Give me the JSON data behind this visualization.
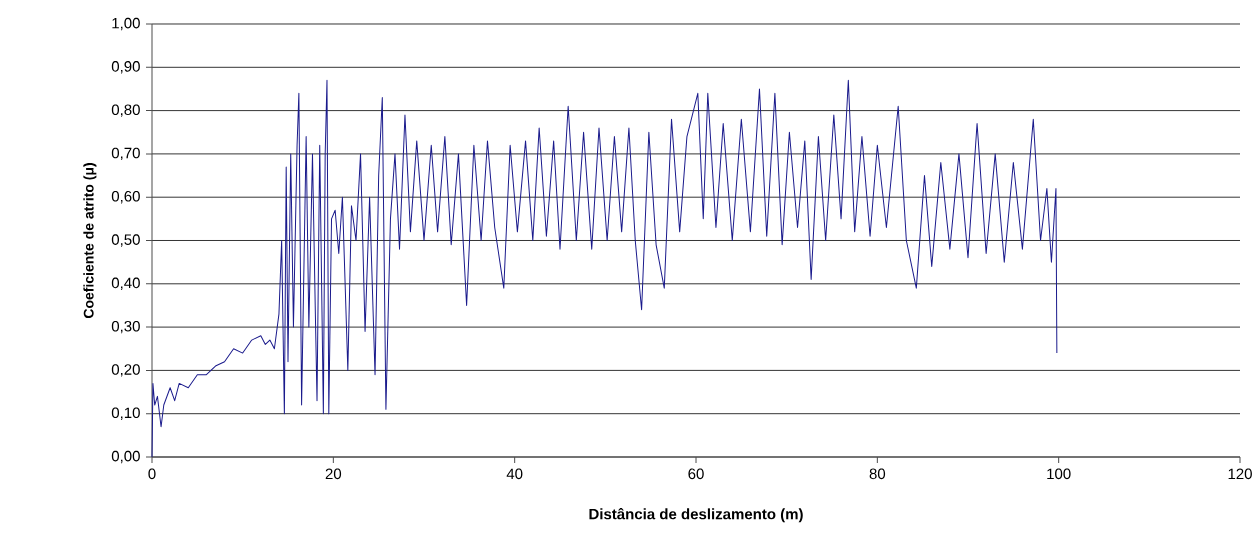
{
  "chart_data": {
    "type": "line",
    "xlabel": "Distância de deslizamento (m)",
    "ylabel": "Coeficiente de atrito (μ)",
    "xlim": [
      0,
      120
    ],
    "ylim": [
      0,
      1
    ],
    "xticks": [
      0,
      20,
      40,
      60,
      80,
      100,
      120
    ],
    "yticks": [
      {
        "value": 0,
        "label": "0,00"
      },
      {
        "value": 0.1,
        "label": "0,10"
      },
      {
        "value": 0.2,
        "label": "0,20"
      },
      {
        "value": 0.3,
        "label": "0,30"
      },
      {
        "value": 0.4,
        "label": "0,40"
      },
      {
        "value": 0.5,
        "label": "0,50"
      },
      {
        "value": 0.6,
        "label": "0,60"
      },
      {
        "value": 0.7,
        "label": "0,70"
      },
      {
        "value": 0.8,
        "label": "0,80"
      },
      {
        "value": 0.9,
        "label": "0,90"
      },
      {
        "value": 1,
        "label": "1,00"
      }
    ],
    "grid": "y",
    "marker": "none",
    "color": "#1a1a8c",
    "x": [
      0,
      0.1,
      0.3,
      0.6,
      1.0,
      1.3,
      2.0,
      2.5,
      3.0,
      4.0,
      5.0,
      6.0,
      7.0,
      8.0,
      9.0,
      10.0,
      11.0,
      12.0,
      12.5,
      13.0,
      13.5,
      14.0,
      14.3,
      14.6,
      14.8,
      15.0,
      15.3,
      15.6,
      16.0,
      16.2,
      16.5,
      17.0,
      17.3,
      17.7,
      18.0,
      18.2,
      18.5,
      18.9,
      19.1,
      19.3,
      19.5,
      19.8,
      20.2,
      20.6,
      21.0,
      21.6,
      22.0,
      22.5,
      23.0,
      23.5,
      24.0,
      24.6,
      25.0,
      25.4,
      25.8,
      26.3,
      26.8,
      27.3,
      27.9,
      28.5,
      29.2,
      30.0,
      30.8,
      31.5,
      32.3,
      33.0,
      33.8,
      34.7,
      35.5,
      36.3,
      37.0,
      37.8,
      38.8,
      39.5,
      40.3,
      41.2,
      42.0,
      42.7,
      43.5,
      44.3,
      45.0,
      45.9,
      46.8,
      47.6,
      48.5,
      49.3,
      50.2,
      51.0,
      51.8,
      52.6,
      53.3,
      54.0,
      54.8,
      55.6,
      56.5,
      57.3,
      58.2,
      59.0,
      60.2,
      60.8,
      61.3,
      62.2,
      63.0,
      64.0,
      65.0,
      66.0,
      67.0,
      67.8,
      68.7,
      69.5,
      70.3,
      71.2,
      72.0,
      72.7,
      73.5,
      74.3,
      75.2,
      76.0,
      76.8,
      77.5,
      78.3,
      79.2,
      80.0,
      81.0,
      82.3,
      83.2,
      84.3,
      85.2,
      86.0,
      87.0,
      88.0,
      89.0,
      90.0,
      91.0,
      92.0,
      93.0,
      94.0,
      95.0,
      96.0,
      97.2,
      98.0,
      98.7,
      99.2,
      99.7,
      99.8
    ],
    "values": [
      0.0,
      0.17,
      0.12,
      0.14,
      0.07,
      0.12,
      0.16,
      0.13,
      0.17,
      0.16,
      0.19,
      0.19,
      0.21,
      0.22,
      0.25,
      0.24,
      0.27,
      0.28,
      0.26,
      0.27,
      0.25,
      0.33,
      0.5,
      0.1,
      0.67,
      0.22,
      0.7,
      0.3,
      0.72,
      0.84,
      0.12,
      0.74,
      0.3,
      0.7,
      0.35,
      0.13,
      0.72,
      0.1,
      0.7,
      0.87,
      0.1,
      0.55,
      0.57,
      0.47,
      0.6,
      0.2,
      0.58,
      0.5,
      0.7,
      0.29,
      0.6,
      0.19,
      0.65,
      0.83,
      0.11,
      0.55,
      0.7,
      0.48,
      0.79,
      0.52,
      0.73,
      0.5,
      0.72,
      0.52,
      0.74,
      0.49,
      0.7,
      0.35,
      0.72,
      0.5,
      0.73,
      0.53,
      0.39,
      0.72,
      0.52,
      0.73,
      0.5,
      0.76,
      0.51,
      0.73,
      0.48,
      0.81,
      0.5,
      0.75,
      0.48,
      0.76,
      0.5,
      0.74,
      0.52,
      0.76,
      0.5,
      0.34,
      0.75,
      0.49,
      0.39,
      0.78,
      0.52,
      0.74,
      0.84,
      0.55,
      0.84,
      0.53,
      0.77,
      0.5,
      0.78,
      0.52,
      0.85,
      0.51,
      0.84,
      0.49,
      0.75,
      0.53,
      0.73,
      0.41,
      0.74,
      0.5,
      0.79,
      0.55,
      0.87,
      0.52,
      0.74,
      0.51,
      0.72,
      0.53,
      0.81,
      0.5,
      0.39,
      0.65,
      0.44,
      0.68,
      0.48,
      0.7,
      0.46,
      0.77,
      0.47,
      0.7,
      0.45,
      0.68,
      0.48,
      0.78,
      0.5,
      0.62,
      0.45,
      0.62,
      0.24
    ]
  }
}
